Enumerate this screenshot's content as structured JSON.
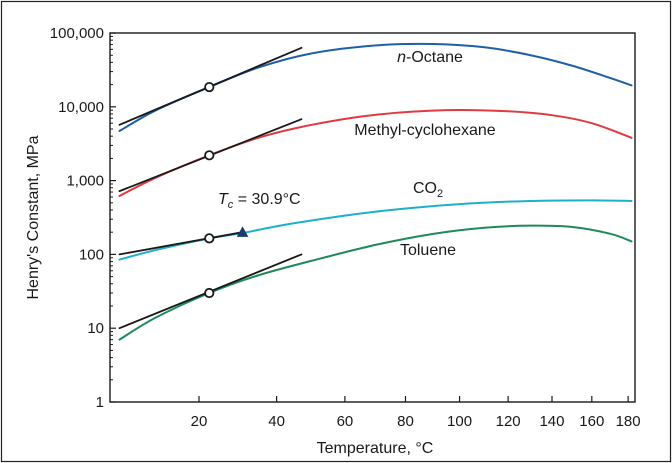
{
  "chart_data": {
    "type": "line",
    "title": "",
    "xlabel": "Temperature, °C",
    "ylabel": "Henry's Constant, MPa",
    "x_scale": "reciprocal",
    "y_scale": "log",
    "xlim": [
      0,
      184
    ],
    "ylim": [
      1,
      100000
    ],
    "grid": false,
    "legend": "none",
    "x_ticks": [
      {
        "value": 20,
        "label": "20"
      },
      {
        "value": 40,
        "label": "40"
      },
      {
        "value": 60,
        "label": "60"
      },
      {
        "value": 80,
        "label": "80"
      },
      {
        "value": 100,
        "label": "100"
      },
      {
        "value": 120,
        "label": "120"
      },
      {
        "value": 140,
        "label": "140"
      },
      {
        "value": 160,
        "label": "160"
      },
      {
        "value": 180,
        "label": "180"
      }
    ],
    "y_ticks": [
      {
        "value": 1,
        "label": "1"
      },
      {
        "value": 10,
        "label": "10"
      },
      {
        "value": 100,
        "label": "100"
      },
      {
        "value": 1000,
        "label": "1,000"
      },
      {
        "value": 10000,
        "label": "10,000"
      },
      {
        "value": 100000,
        "label": "100,000"
      }
    ],
    "series": [
      {
        "name": "n-Octane",
        "label_prefix": "n",
        "label_rest": "-Octane",
        "color": "#1f5fa8",
        "x": [
          2,
          10,
          22.5,
          35,
          50,
          70,
          90,
          110,
          130,
          150,
          170,
          182
        ],
        "y": [
          4700,
          9000,
          18500,
          34000,
          53000,
          68000,
          71000,
          64000,
          50000,
          36000,
          24500,
          19500
        ]
      },
      {
        "name": "Methyl-cyclohexane",
        "color": "#e03a3e",
        "x": [
          2,
          10,
          22.5,
          35,
          50,
          70,
          95,
          120,
          140,
          160,
          182
        ],
        "y": [
          620,
          1100,
          2200,
          3800,
          5700,
          7800,
          9000,
          8700,
          7700,
          6000,
          3800
        ]
      },
      {
        "name": "CO2",
        "label_main": "CO",
        "label_sub": "2",
        "color": "#1eb0c8",
        "x": [
          2,
          10,
          22.5,
          30.9,
          45,
          70,
          100,
          130,
          160,
          182
        ],
        "y": [
          85,
          115,
          165,
          195,
          265,
          380,
          480,
          530,
          540,
          530
        ]
      },
      {
        "name": "Toluene",
        "color": "#1e8a5c",
        "x": [
          2,
          10,
          22.5,
          35,
          50,
          70,
          90,
          110,
          130,
          150,
          170,
          182
        ],
        "y": [
          7,
          14,
          30,
          52,
          82,
          135,
          190,
          230,
          245,
          235,
          190,
          150
        ]
      }
    ],
    "tangent_lines": [
      {
        "series": "n-Octane",
        "x": [
          2,
          47
        ],
        "y": [
          5700,
          63000
        ]
      },
      {
        "series": "Methyl-cyclohexane",
        "x": [
          2,
          47
        ],
        "y": [
          720,
          6800
        ]
      },
      {
        "series": "CO2",
        "x": [
          2,
          30.9
        ],
        "y": [
          100,
          200
        ]
      },
      {
        "series": "Toluene",
        "x": [
          2,
          47
        ],
        "y": [
          10,
          100
        ]
      }
    ],
    "markers": [
      {
        "type": "circle",
        "series": "n-Octane",
        "x": 22.5,
        "y": 18500
      },
      {
        "type": "circle",
        "series": "Methyl-cyclohexane",
        "x": 22.5,
        "y": 2200
      },
      {
        "type": "circle",
        "series": "CO2",
        "x": 22.5,
        "y": 165
      },
      {
        "type": "triangle",
        "series": "CO2",
        "x": 30.9,
        "y": 195
      },
      {
        "type": "circle",
        "series": "Toluene",
        "x": 22.5,
        "y": 30
      }
    ],
    "annotation": {
      "symbol": "T",
      "subscript": "c",
      "text": " = 30.9°C"
    },
    "colors": {
      "axis": "#1a1a1a",
      "tangent": "#1a1a1a",
      "triangle": "#1f3a66"
    }
  }
}
